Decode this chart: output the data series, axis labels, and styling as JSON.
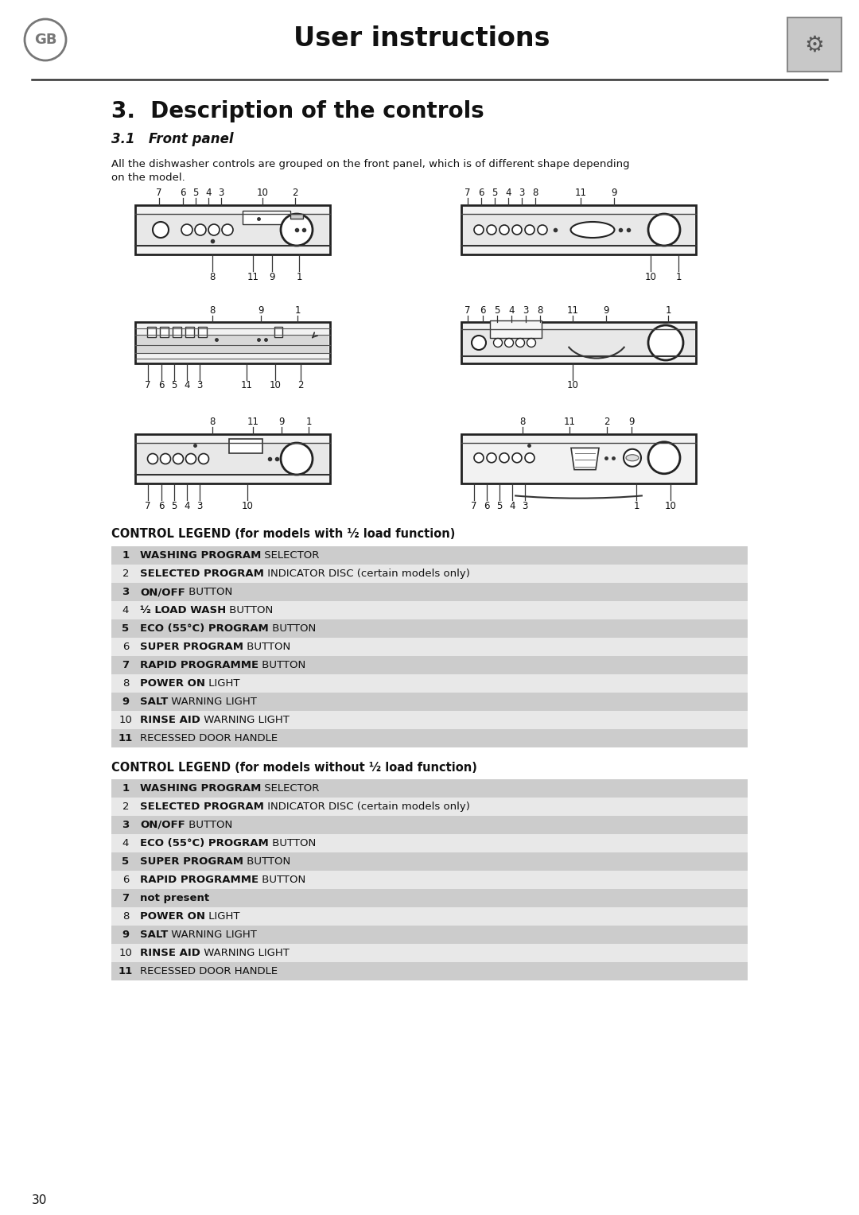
{
  "title": "User instructions",
  "gb_label": "GB",
  "section_title": "3.  Description of the controls",
  "subsection_title": "3.1   Front panel",
  "intro_line1": "All the dishwasher controls are grouped on the front panel, which is of different shape depending",
  "intro_line2": "on the model.",
  "page_number": "30",
  "legend1_title": "CONTROL LEGEND (for models with ½ load function)",
  "legend2_title": "CONTROL LEGEND (for models without ½ load function)",
  "legend1_items": [
    {
      "num": "1",
      "bold": "WASHING PROGRAM",
      "normal": " SELECTOR"
    },
    {
      "num": "2",
      "bold": "SELECTED PROGRAM",
      "normal": " INDICATOR DISC (certain models only)"
    },
    {
      "num": "3",
      "bold": "ON/OFF",
      "normal": " BUTTON"
    },
    {
      "num": "4",
      "bold": "½ LOAD WASH",
      "normal": " BUTTON"
    },
    {
      "num": "5",
      "bold": "ECO (55°C) PROGRAM",
      "normal": " BUTTON"
    },
    {
      "num": "6",
      "bold": "SUPER PROGRAM",
      "normal": " BUTTON"
    },
    {
      "num": "7",
      "bold": "RAPID PROGRAMME",
      "normal": " BUTTON"
    },
    {
      "num": "8",
      "bold": "POWER ON",
      "normal": " LIGHT"
    },
    {
      "num": "9",
      "bold": "SALT",
      "normal": " WARNING LIGHT"
    },
    {
      "num": "10",
      "bold": "RINSE AID",
      "normal": " WARNING LIGHT"
    },
    {
      "num": "11",
      "bold": "",
      "normal": "RECESSED DOOR HANDLE"
    }
  ],
  "legend2_items": [
    {
      "num": "1",
      "bold": "WASHING PROGRAM",
      "normal": " SELECTOR"
    },
    {
      "num": "2",
      "bold": "SELECTED PROGRAM",
      "normal": " INDICATOR DISC (certain models only)"
    },
    {
      "num": "3",
      "bold": "ON/OFF",
      "normal": " BUTTON"
    },
    {
      "num": "4",
      "bold": "ECO (55°C) PROGRAM",
      "normal": " BUTTON"
    },
    {
      "num": "5",
      "bold": "SUPER PROGRAM",
      "normal": " BUTTON"
    },
    {
      "num": "6",
      "bold": "RAPID PROGRAMME",
      "normal": " BUTTON"
    },
    {
      "num": "7",
      "bold": "not present",
      "normal": ""
    },
    {
      "num": "8",
      "bold": "POWER ON",
      "normal": " LIGHT"
    },
    {
      "num": "9",
      "bold": "SALT",
      "normal": " WARNING LIGHT"
    },
    {
      "num": "10",
      "bold": "RINSE AID",
      "normal": " WARNING LIGHT"
    },
    {
      "num": "11",
      "bold": "",
      "normal": "RECESSED DOOR HANDLE"
    }
  ],
  "bg_color": "#ffffff",
  "row_odd_color": "#cccccc",
  "row_even_color": "#e8e8e8"
}
